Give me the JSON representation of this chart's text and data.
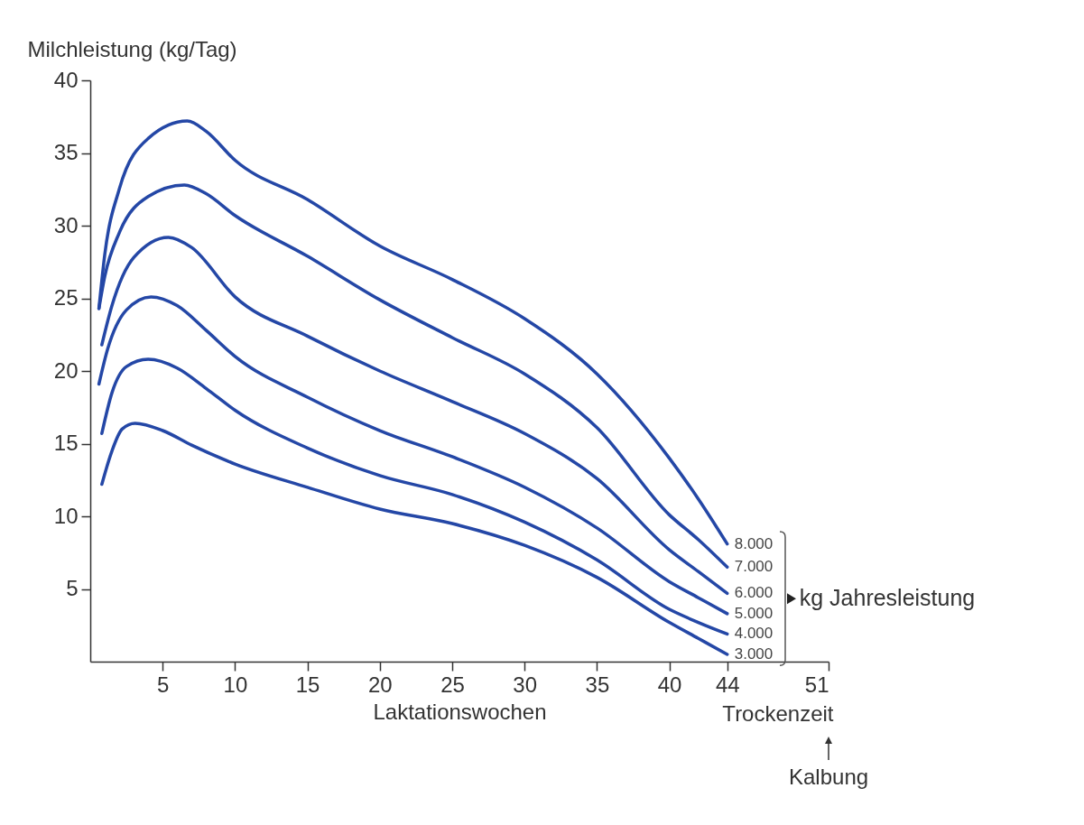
{
  "chart_data": {
    "type": "line",
    "ylabel": "Milchleistung (kg/Tag)",
    "xlabel": "Laktationswochen",
    "legend_title": "kg Jahresleistung",
    "annotations": [
      "Trockenzeit",
      "Kalbung"
    ],
    "xlim": [
      0,
      51
    ],
    "xticks": [
      5,
      10,
      15,
      20,
      25,
      30,
      35,
      40,
      44,
      51
    ],
    "ylim": [
      0,
      40
    ],
    "yticks": [
      5,
      10,
      15,
      20,
      25,
      30,
      35,
      40
    ],
    "grid": false,
    "series": [
      {
        "name": "8.000",
        "color": "#2447a6",
        "x": [
          0.6,
          1,
          2,
          4,
          6.7,
          8,
          10,
          15,
          20,
          25,
          30,
          35,
          40,
          42,
          44
        ],
        "values": [
          24.3,
          28,
          32.5,
          36,
          37.2,
          36.5,
          34.5,
          31.8,
          28.6,
          26.3,
          23.6,
          19.8,
          14,
          11.2,
          8.1
        ]
      },
      {
        "name": "7.000",
        "color": "#2447a6",
        "x": [
          0.6,
          1,
          2,
          4,
          6.5,
          8,
          10,
          15,
          20,
          25,
          30,
          35,
          40,
          42,
          44
        ],
        "values": [
          24.3,
          26.5,
          29.5,
          32,
          32.8,
          32.2,
          30.7,
          27.9,
          24.9,
          22.3,
          19.8,
          16.1,
          10.1,
          8.4,
          6.5
        ]
      },
      {
        "name": "6.000",
        "color": "#2447a6",
        "x": [
          0.8,
          1.5,
          3,
          5.4,
          7,
          10,
          15,
          20,
          25,
          30,
          35,
          40,
          42,
          44
        ],
        "values": [
          21.8,
          24.5,
          27.8,
          29.2,
          28.5,
          25.1,
          22.4,
          20,
          17.9,
          15.7,
          12.6,
          7.7,
          6.2,
          4.7
        ]
      },
      {
        "name": "5.000",
        "color": "#2447a6",
        "x": [
          0.6,
          1.2,
          2.5,
          4.2,
          6,
          8,
          10,
          15,
          20,
          25,
          30,
          35,
          40,
          42,
          44
        ],
        "values": [
          19.1,
          21.5,
          24.2,
          25.1,
          24.5,
          22.8,
          21,
          18.2,
          15.9,
          14.1,
          12,
          9.2,
          5.5,
          4.4,
          3.3
        ]
      },
      {
        "name": "4.000",
        "color": "#2447a6",
        "x": [
          0.8,
          1.5,
          2.5,
          4,
          6,
          8,
          10,
          15,
          20,
          25,
          30,
          35,
          40,
          42,
          44
        ],
        "values": [
          15.7,
          18.5,
          20.3,
          20.8,
          20.2,
          18.8,
          17.3,
          14.7,
          12.8,
          11.5,
          9.6,
          7,
          3.6,
          2.7,
          1.9
        ]
      },
      {
        "name": "3.000",
        "color": "#2447a6",
        "x": [
          0.8,
          1.5,
          2.2,
          3.1,
          5,
          7,
          10,
          15,
          20,
          25,
          30,
          35,
          40,
          42,
          44
        ],
        "values": [
          12.2,
          14.5,
          16,
          16.4,
          15.9,
          14.9,
          13.6,
          12,
          10.5,
          9.5,
          8,
          5.8,
          2.7,
          1.6,
          0.5
        ]
      }
    ]
  }
}
